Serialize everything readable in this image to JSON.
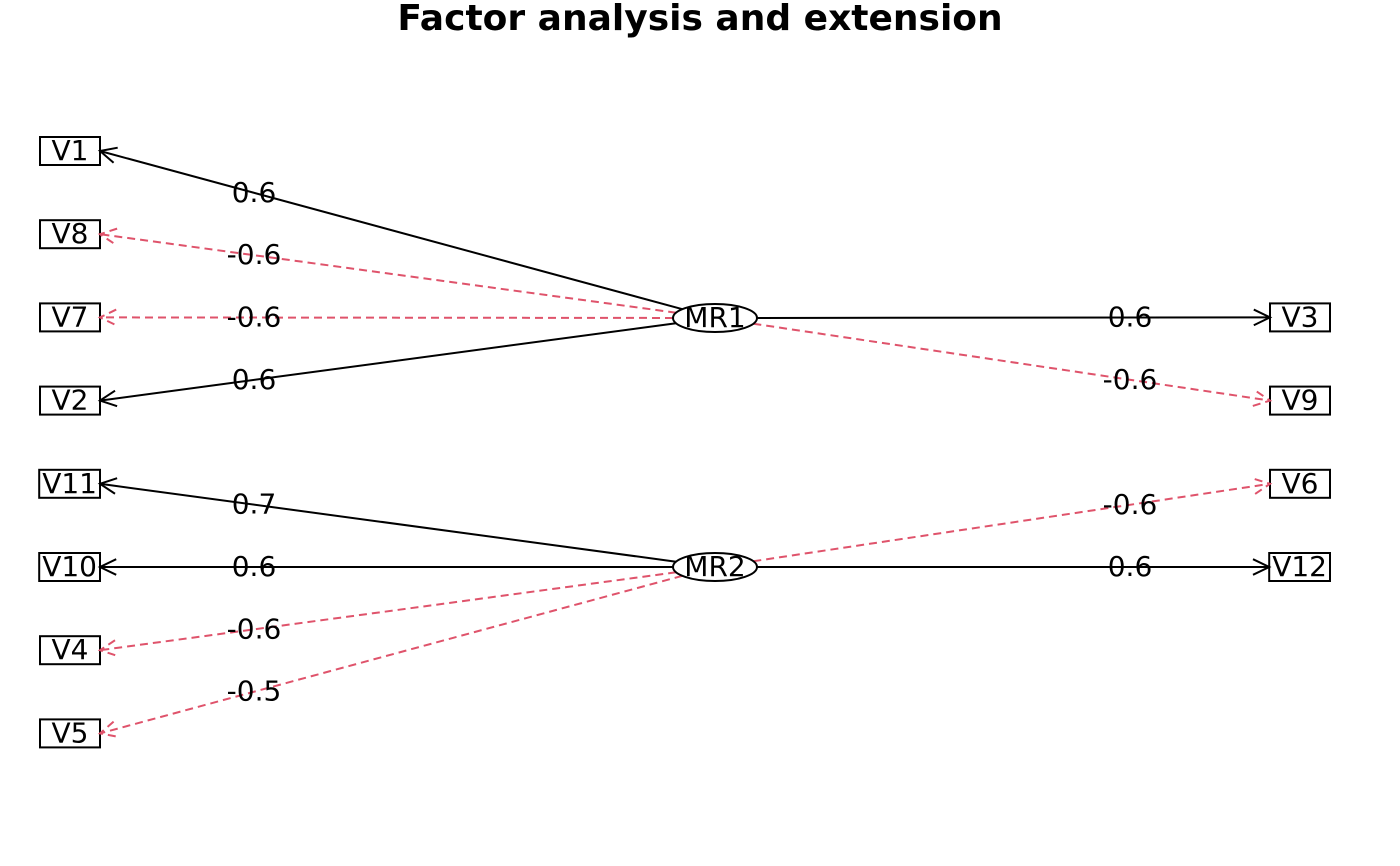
{
  "title": "Factor analysis and extension",
  "factors": [
    {
      "label": "MR1"
    },
    {
      "label": "MR2"
    }
  ],
  "left_nodes": [
    {
      "label": "V1"
    },
    {
      "label": "V8"
    },
    {
      "label": "V7"
    },
    {
      "label": "V2"
    },
    {
      "label": "V11"
    },
    {
      "label": "V10"
    },
    {
      "label": "V4"
    },
    {
      "label": "V5"
    }
  ],
  "right_nodes": [
    {
      "label": "V3"
    },
    {
      "label": "V9"
    },
    {
      "label": "V6"
    },
    {
      "label": "V12"
    }
  ],
  "edges": [
    {
      "from": 0,
      "side": "left",
      "to": 0,
      "label": "0.6",
      "style": "solid"
    },
    {
      "from": 0,
      "side": "left",
      "to": 1,
      "label": "-0.6",
      "style": "dashed"
    },
    {
      "from": 0,
      "side": "left",
      "to": 2,
      "label": "-0.6",
      "style": "dashed"
    },
    {
      "from": 0,
      "side": "left",
      "to": 3,
      "label": "0.6",
      "style": "solid"
    },
    {
      "from": 1,
      "side": "left",
      "to": 4,
      "label": "0.7",
      "style": "solid"
    },
    {
      "from": 1,
      "side": "left",
      "to": 5,
      "label": "0.6",
      "style": "solid"
    },
    {
      "from": 1,
      "side": "left",
      "to": 6,
      "label": "-0.6",
      "style": "dashed"
    },
    {
      "from": 1,
      "side": "left",
      "to": 7,
      "label": "-0.5",
      "style": "dashed"
    },
    {
      "from": 0,
      "side": "right",
      "to": 0,
      "label": "0.6",
      "style": "solid"
    },
    {
      "from": 0,
      "side": "right",
      "to": 1,
      "label": "-0.6",
      "style": "dashed"
    },
    {
      "from": 1,
      "side": "right",
      "to": 2,
      "label": "-0.6",
      "style": "dashed"
    },
    {
      "from": 1,
      "side": "right",
      "to": 3,
      "label": "0.6",
      "style": "solid"
    }
  ]
}
